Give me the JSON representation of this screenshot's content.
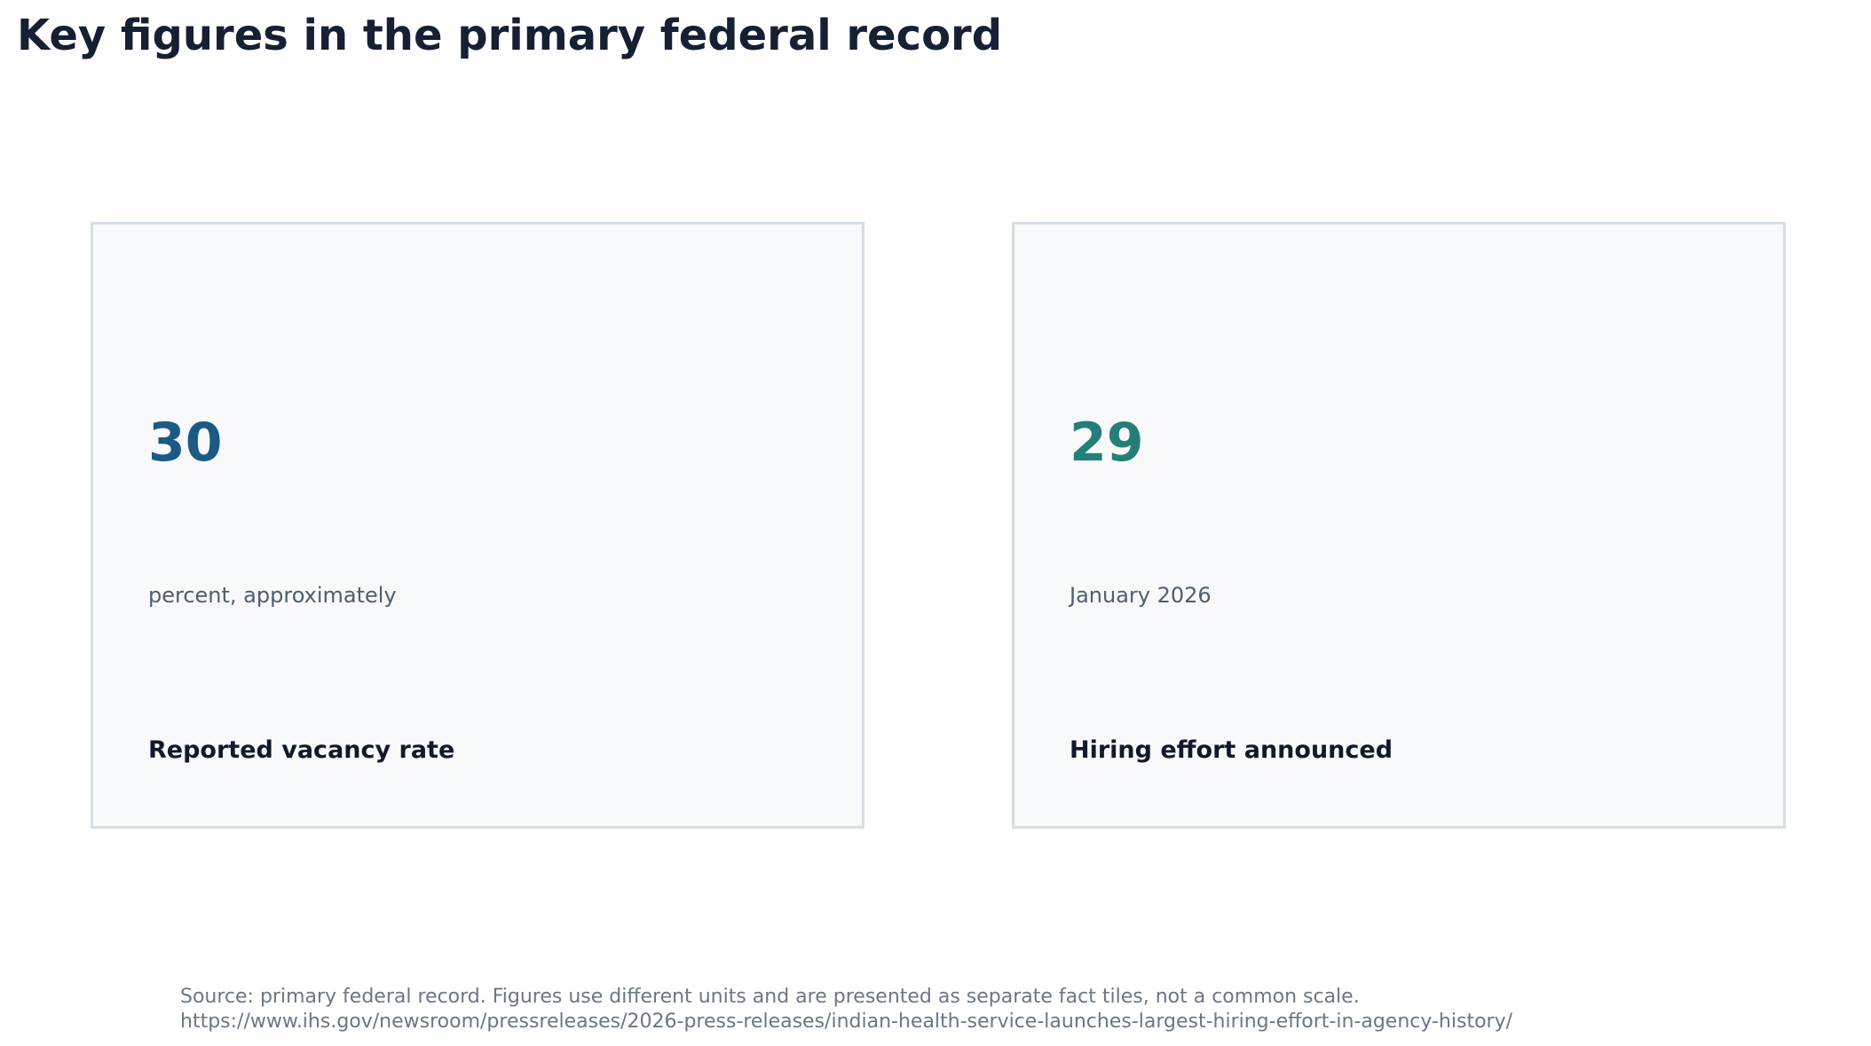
{
  "title": "Key figures in the primary federal record",
  "chart_data": {
    "type": "table",
    "tiles": [
      {
        "value": "30",
        "unit": "percent, approximately",
        "label": "Reported vacancy rate",
        "color": "#1b5a85"
      },
      {
        "value": "29",
        "unit": "January 2026",
        "label": "Hiring effort announced",
        "color": "#237f78"
      }
    ]
  },
  "footer": {
    "source_line": "Source: primary federal record. Figures use different units and are presented as separate fact tiles, not a common scale.",
    "url_line": "https://www.ihs.gov/newsroom/pressreleases/2026-press-releases/indian-health-service-launches-largest-hiring-effort-in-agency-history/"
  }
}
